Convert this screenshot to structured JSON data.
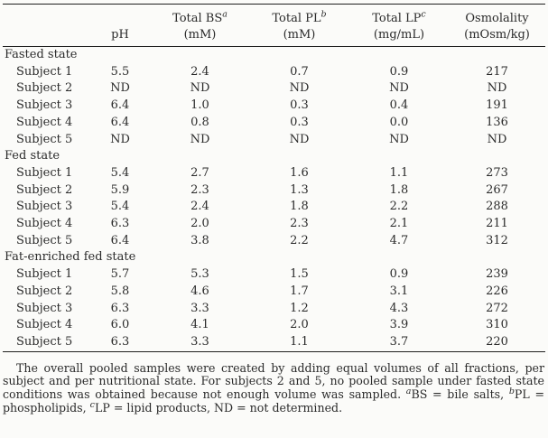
{
  "table": {
    "columns": [
      {
        "line1": "",
        "sup": "",
        "line2": "pH"
      },
      {
        "line1": "Total BS",
        "sup": "a",
        "line2": "(mM)"
      },
      {
        "line1": "Total PL",
        "sup": "b",
        "line2": "(mM)"
      },
      {
        "line1": "Total LP",
        "sup": "c",
        "line2": "(mg/mL)"
      },
      {
        "line1": "Osmolality",
        "sup": "",
        "line2": "(mOsm/kg)"
      }
    ],
    "sections": [
      {
        "label": "Fasted state",
        "rows": [
          {
            "label": "Subject 1",
            "values": [
              "5.5",
              "2.4",
              "0.7",
              "0.9",
              "217"
            ]
          },
          {
            "label": "Subject 2",
            "values": [
              "ND",
              "ND",
              "ND",
              "ND",
              "ND"
            ]
          },
          {
            "label": "Subject 3",
            "values": [
              "6.4",
              "1.0",
              "0.3",
              "0.4",
              "191"
            ]
          },
          {
            "label": "Subject 4",
            "values": [
              "6.4",
              "0.8",
              "0.3",
              "0.0",
              "136"
            ]
          },
          {
            "label": "Subject 5",
            "values": [
              "ND",
              "ND",
              "ND",
              "ND",
              "ND"
            ]
          }
        ]
      },
      {
        "label": "Fed state",
        "rows": [
          {
            "label": "Subject 1",
            "values": [
              "5.4",
              "2.7",
              "1.6",
              "1.1",
              "273"
            ]
          },
          {
            "label": "Subject 2",
            "values": [
              "5.9",
              "2.3",
              "1.3",
              "1.8",
              "267"
            ]
          },
          {
            "label": "Subject 3",
            "values": [
              "5.4",
              "2.4",
              "1.8",
              "2.2",
              "288"
            ]
          },
          {
            "label": "Subject 4",
            "values": [
              "6.3",
              "2.0",
              "2.3",
              "2.1",
              "211"
            ]
          },
          {
            "label": "Subject 5",
            "values": [
              "6.4",
              "3.8",
              "2.2",
              "4.7",
              "312"
            ]
          }
        ]
      },
      {
        "label": "Fat-enriched fed state",
        "rows": [
          {
            "label": "Subject 1",
            "values": [
              "5.7",
              "5.3",
              "1.5",
              "0.9",
              "239"
            ]
          },
          {
            "label": "Subject 2",
            "values": [
              "5.8",
              "4.6",
              "1.7",
              "3.1",
              "226"
            ]
          },
          {
            "label": "Subject 3",
            "values": [
              "6.3",
              "3.3",
              "1.2",
              "4.3",
              "272"
            ]
          },
          {
            "label": "Subject 4",
            "values": [
              "6.0",
              "4.1",
              "2.0",
              "3.9",
              "310"
            ]
          },
          {
            "label": "Subject 5",
            "values": [
              "6.3",
              "3.3",
              "1.1",
              "3.7",
              "220"
            ]
          }
        ]
      }
    ]
  },
  "footnote": {
    "parts": [
      {
        "text": "The overall pooled samples were created by adding equal volumes of all fractions, per subject and per nutritional state. For subjects 2 and 5, no pooled sample under fasted state conditions was obtained because not enough volume was sampled. "
      },
      {
        "sup": "a"
      },
      {
        "text": "BS = bile salts, "
      },
      {
        "sup": "b"
      },
      {
        "text": "PL = phospholipids, "
      },
      {
        "sup": "c"
      },
      {
        "text": "LP = lipid products, ND = not determined."
      }
    ]
  },
  "colors": {
    "background": "#fbfbf9",
    "text": "#2b2b2b",
    "rule": "#1f1f1f"
  }
}
